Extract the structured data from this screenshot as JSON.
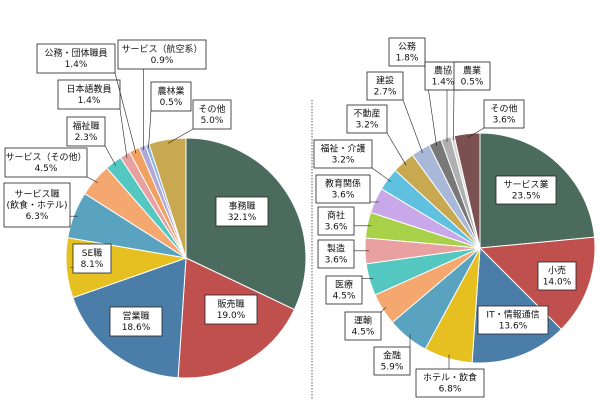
{
  "chart_data": [
    {
      "type": "pie",
      "categories": [
        "事務職",
        "販売職",
        "営業職",
        "SE職",
        "サービス職（飲食・ホテル）",
        "サービス（その他）",
        "福祉職",
        "日本語教員",
        "公務・団体職員",
        "サービス（航空系）",
        "農林業",
        "その他"
      ],
      "label_lines": [
        [
          "事務職",
          "32.1%"
        ],
        [
          "販売職",
          "19.0%"
        ],
        [
          "営業職",
          "18.6%"
        ],
        [
          "SE職",
          "8.1%"
        ],
        [
          "サービス職",
          "(飲食・ホテル)",
          "6.3%"
        ],
        [
          "サービス（その他）",
          "4.5%"
        ],
        [
          "福祉職",
          "2.3%"
        ],
        [
          "日本語教員",
          "1.4%"
        ],
        [
          "公務・団体職員",
          "1.4%"
        ],
        [
          "サービス（航空系）",
          "0.9%"
        ],
        [
          "農林業",
          "0.5%"
        ],
        [
          "その他",
          "5.0%"
        ]
      ],
      "values": [
        32.1,
        19.0,
        18.6,
        8.1,
        6.3,
        4.5,
        2.3,
        1.4,
        1.4,
        0.9,
        0.5,
        5.0
      ],
      "colors": [
        "#4a6b5e",
        "#c0504d",
        "#4a7da8",
        "#e6c020",
        "#5aa3c0",
        "#f4a870",
        "#54c8c0",
        "#e8a0a0",
        "#f0a060",
        "#b0a8d8",
        "#8ab0e0",
        "#c8a850"
      ],
      "unit": "%",
      "start_angle_deg": 0,
      "direction": "clockwise"
    },
    {
      "type": "pie",
      "categories": [
        "サービス業",
        "小売",
        "IT・情報通信",
        "ホテル・飲食",
        "金融",
        "運輸",
        "医療",
        "製造",
        "商社",
        "教育関係",
        "福祉・介護",
        "不動産",
        "建設",
        "公務",
        "農協",
        "農業",
        "その他"
      ],
      "label_lines": [
        [
          "サービス業",
          "23.5%"
        ],
        [
          "小売",
          "14.0%"
        ],
        [
          "IT・情報通信",
          "13.6%"
        ],
        [
          "ホテル・飲食",
          "6.8%"
        ],
        [
          "金融",
          "5.9%"
        ],
        [
          "運輸",
          "4.5%"
        ],
        [
          "医療",
          "4.5%"
        ],
        [
          "製造",
          "3.6%"
        ],
        [
          "商社",
          "3.6%"
        ],
        [
          "教育関係",
          "3.6%"
        ],
        [
          "福祉・介護",
          "3.2%"
        ],
        [
          "不動産",
          "3.2%"
        ],
        [
          "建設",
          "2.7%"
        ],
        [
          "公務",
          "1.8%"
        ],
        [
          "農協",
          "1.4%"
        ],
        [
          "農業",
          "0.5%"
        ],
        [
          "その他",
          "3.6%"
        ]
      ],
      "values": [
        23.5,
        14.0,
        13.6,
        6.8,
        5.9,
        4.5,
        4.5,
        3.6,
        3.6,
        3.6,
        3.2,
        3.2,
        2.7,
        1.8,
        1.4,
        0.5,
        3.6
      ],
      "colors": [
        "#4a6b5e",
        "#c0504d",
        "#4a7da8",
        "#e6c020",
        "#5aa3c0",
        "#f4a870",
        "#54c8c0",
        "#e8a0a0",
        "#a8d048",
        "#c8a8e8",
        "#60c0e0",
        "#c8a850",
        "#a8b8d8",
        "#787878",
        "#b0b0b0",
        "#d8d8d8",
        "#7a5050"
      ],
      "unit": "%",
      "start_angle_deg": 0,
      "direction": "clockwise"
    }
  ]
}
